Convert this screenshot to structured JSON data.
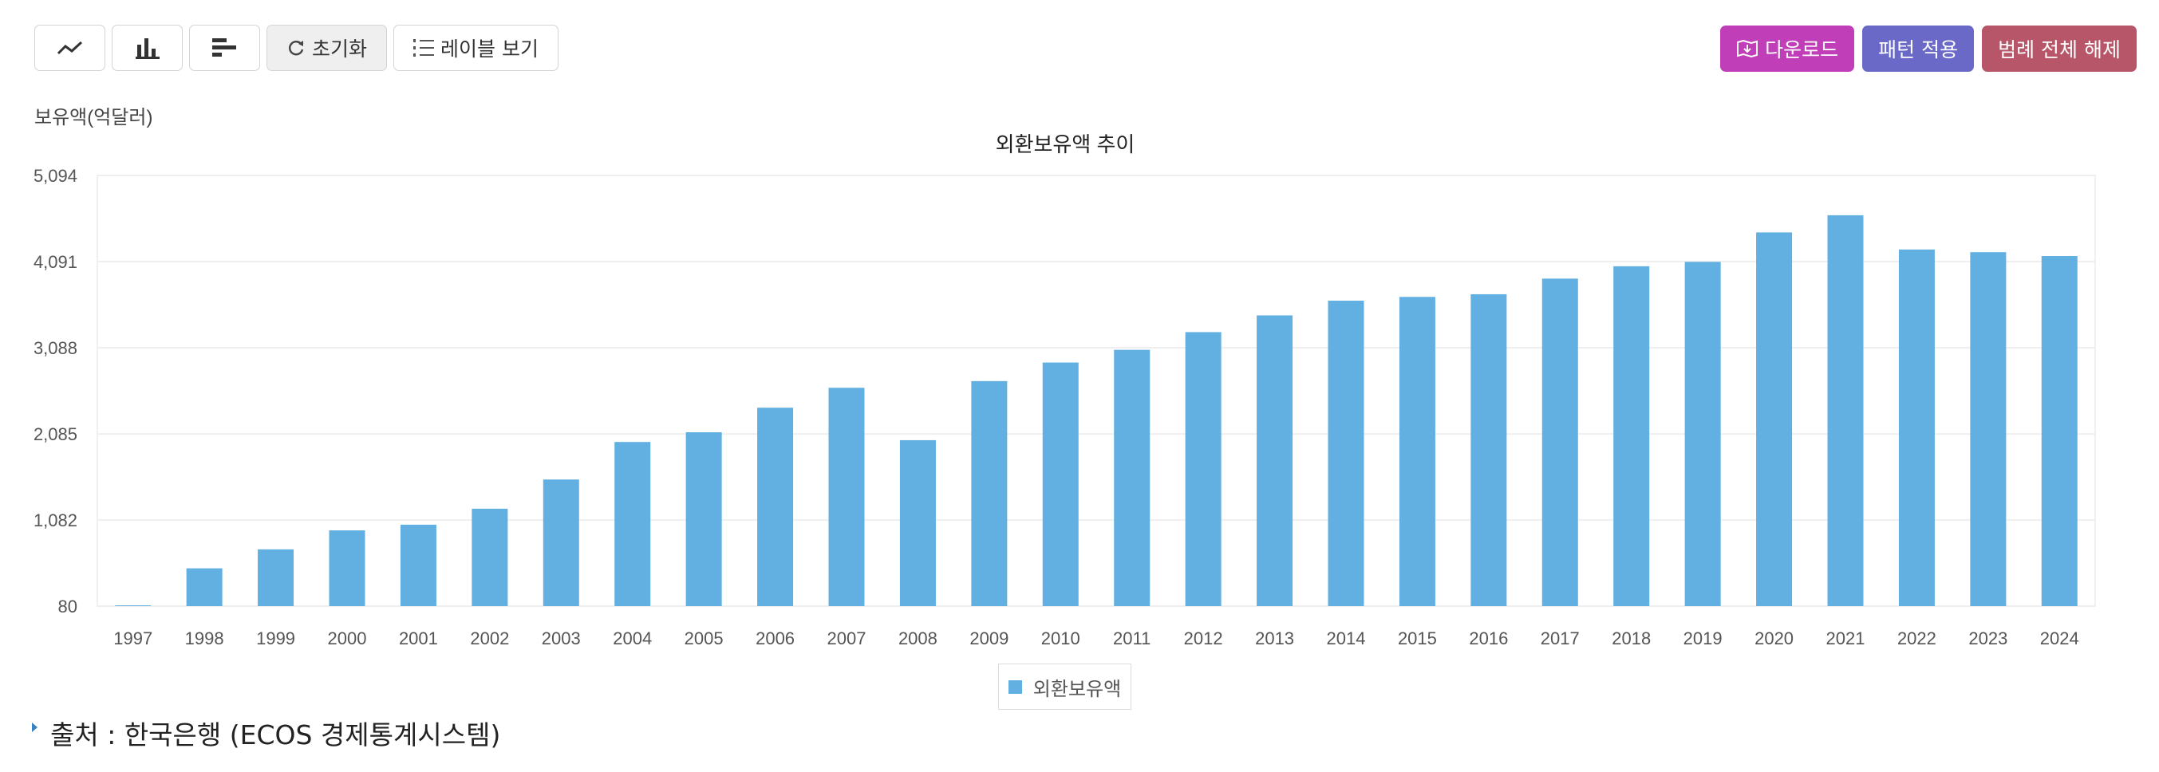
{
  "toolbar": {
    "reset_label": "초기화",
    "label_view_label": "레이블 보기",
    "download_label": "다운로드",
    "pattern_label": "패턴 적용",
    "legend_clear_label": "범례 전체 해제",
    "download_color": "#c03fb8",
    "pattern_color": "#6a69c7",
    "legend_clear_color": "#b85669"
  },
  "source": {
    "text": "출처 : 한국은행 (ECOS 경제통계시스템)"
  },
  "chart_data": {
    "type": "bar",
    "title": "외환보유액 추이",
    "ylabel": "보유액(억달러)",
    "xlabel": "",
    "ylim": [
      80,
      5094
    ],
    "yticks": [
      "5,094",
      "4,091",
      "3,088",
      "2,085",
      "1,082",
      "80"
    ],
    "ytick_values": [
      5094,
      4091,
      3088,
      2085,
      1082,
      80
    ],
    "categories": [
      "1997",
      "1998",
      "1999",
      "2000",
      "2001",
      "2002",
      "2003",
      "2004",
      "2005",
      "2006",
      "2007",
      "2008",
      "2009",
      "2010",
      "2011",
      "2012",
      "2013",
      "2014",
      "2015",
      "2016",
      "2017",
      "2018",
      "2019",
      "2020",
      "2021",
      "2022",
      "2023",
      "2024"
    ],
    "series": [
      {
        "name": "외환보유액",
        "color": "#62b0e1",
        "values": [
          89,
          520,
          741,
          962,
          1028,
          1214,
          1554,
          1991,
          2104,
          2390,
          2622,
          2012,
          2700,
          2916,
          3064,
          3270,
          3465,
          3636,
          3680,
          3711,
          3893,
          4037,
          4088,
          4431,
          4631,
          4232,
          4201,
          4156
        ]
      }
    ],
    "legend_position": "bottom",
    "grid": true
  }
}
